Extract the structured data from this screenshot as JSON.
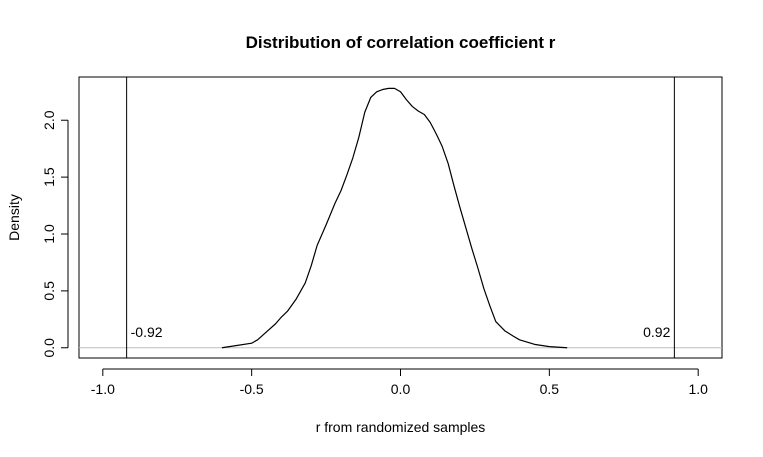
{
  "chart_data": {
    "type": "line",
    "title": "Distribution of correlation coefficient r",
    "xlabel": "r from randomized samples",
    "ylabel": "Density",
    "xlim": [
      -1.08,
      1.08
    ],
    "ylim": [
      -0.09,
      2.38
    ],
    "x_ticks": [
      -1.0,
      -0.5,
      0.0,
      0.5,
      1.0
    ],
    "x_tick_labels": [
      "-1.0",
      "-0.5",
      "0.0",
      "0.5",
      "1.0"
    ],
    "y_ticks": [
      0.0,
      0.5,
      1.0,
      1.5,
      2.0
    ],
    "y_tick_labels": [
      "0.0",
      "0.5",
      "1.0",
      "1.5",
      "2.0"
    ],
    "grid": false,
    "series": [
      {
        "x": [
          -0.6,
          -0.55,
          -0.5,
          -0.48,
          -0.45,
          -0.42,
          -0.4,
          -0.38,
          -0.35,
          -0.32,
          -0.3,
          -0.28,
          -0.25,
          -0.22,
          -0.2,
          -0.18,
          -0.16,
          -0.14,
          -0.12,
          -0.1,
          -0.08,
          -0.06,
          -0.04,
          -0.02,
          0.0,
          0.02,
          0.04,
          0.06,
          0.08,
          0.1,
          0.12,
          0.14,
          0.16,
          0.18,
          0.2,
          0.22,
          0.24,
          0.26,
          0.28,
          0.3,
          0.32,
          0.35,
          0.38,
          0.4,
          0.45,
          0.5,
          0.56
        ],
        "y": [
          0.0,
          0.02,
          0.04,
          0.07,
          0.14,
          0.21,
          0.27,
          0.32,
          0.43,
          0.57,
          0.72,
          0.9,
          1.08,
          1.27,
          1.38,
          1.52,
          1.67,
          1.85,
          2.07,
          2.2,
          2.25,
          2.27,
          2.28,
          2.28,
          2.25,
          2.18,
          2.12,
          2.08,
          2.05,
          1.98,
          1.88,
          1.77,
          1.62,
          1.42,
          1.23,
          1.05,
          0.87,
          0.7,
          0.52,
          0.37,
          0.23,
          0.15,
          0.1,
          0.07,
          0.03,
          0.01,
          0.0
        ]
      }
    ],
    "reference_lines": {
      "vertical": [
        -0.92,
        0.92
      ],
      "horizontal": [
        0.0
      ],
      "horizontal_color": "#bebebe"
    },
    "annotations": [
      {
        "x": -0.92,
        "y": 0.06,
        "text": "-0.92",
        "align": "start"
      },
      {
        "x": 0.92,
        "y": 0.06,
        "text": "0.92",
        "align": "end"
      }
    ],
    "line_color": "#000000"
  }
}
